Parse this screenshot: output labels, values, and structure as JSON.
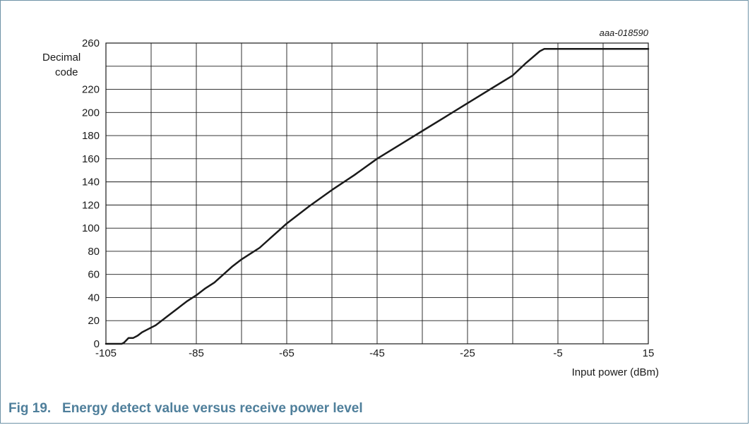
{
  "caption": {
    "number": "Fig 19.",
    "title": "Energy detect value versus receive power level"
  },
  "chart_data": {
    "type": "line",
    "id_label": "aaa-018590",
    "ylabel_lines": [
      "Decimal",
      "code"
    ],
    "xlabel": "Input power (dBm)",
    "xlim": [
      -105,
      15
    ],
    "ylim": [
      0,
      260
    ],
    "x_ticks": [
      -105,
      -85,
      -65,
      -45,
      -25,
      -5,
      15
    ],
    "y_ticks": [
      0,
      20,
      40,
      60,
      80,
      100,
      120,
      140,
      160,
      180,
      200,
      220,
      260
    ],
    "grid": true,
    "series": [
      {
        "x": [
          -105,
          -101.5,
          -101,
          -100,
          -99.5,
          -99,
          -98,
          -97,
          -96,
          -94,
          -93,
          -91,
          -89,
          -87,
          -85,
          -83,
          -81,
          -79,
          -77,
          -75,
          -73,
          -71,
          -69,
          -67,
          -65,
          -60,
          -55,
          -50,
          -45,
          -40,
          -35,
          -30,
          -25,
          -20,
          -15,
          -12,
          -9,
          -8,
          -7,
          15
        ],
        "y": [
          0,
          0,
          1,
          5,
          5,
          5,
          7,
          10,
          12,
          16,
          19,
          25,
          31,
          37,
          42,
          48,
          53,
          60,
          67,
          73,
          78,
          83,
          90,
          97,
          104,
          119,
          133,
          146,
          160,
          172,
          184,
          196,
          208,
          220,
          232,
          243,
          253,
          255,
          255,
          255
        ],
        "color": "#1a1a1a"
      }
    ]
  }
}
